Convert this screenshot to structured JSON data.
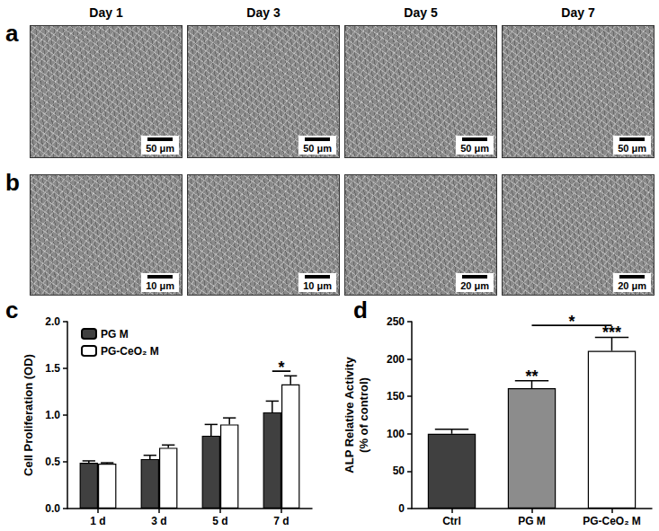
{
  "images": {
    "columns": [
      "Day 1",
      "Day 3",
      "Day 5",
      "Day 7"
    ],
    "rows": [
      {
        "label": "a",
        "scale_bars": [
          "50 μm",
          "50 μm",
          "50 μm",
          "50 μm"
        ]
      },
      {
        "label": "b",
        "scale_bars": [
          "10 μm",
          "10 μm",
          "20 μm",
          "20 μm"
        ]
      }
    ]
  },
  "chart_data": [
    {
      "label": "c",
      "type": "bar",
      "ylabel": [
        "Cell Proliferation (OD)"
      ],
      "categories": [
        "1 d",
        "3 d",
        "5 d",
        "7 d"
      ],
      "series": [
        {
          "name": "PG M",
          "color": "#404040",
          "values": [
            0.49,
            0.53,
            0.78,
            1.03
          ],
          "errors": [
            0.02,
            0.04,
            0.12,
            0.12
          ]
        },
        {
          "name": "PG-CeO₂ M",
          "color": "#ffffff",
          "values": [
            0.48,
            0.65,
            0.9,
            1.33
          ],
          "errors": [
            0.01,
            0.03,
            0.07,
            0.09
          ]
        }
      ],
      "ylim": [
        0,
        2
      ],
      "yticks": [
        {
          "value": 0,
          "label": "0.0"
        },
        0.5,
        {
          "value": 1,
          "label": "1.0"
        },
        1.5,
        {
          "value": 2,
          "label": "2.0"
        }
      ],
      "legend": "upper left",
      "grid": false,
      "annotations": [
        {
          "text": "*",
          "y": 1.47,
          "from": {
            "category": "7 d",
            "series": "PG M"
          },
          "to": {
            "category": "7 d",
            "series": "PG-CeO₂ M"
          }
        }
      ]
    },
    {
      "label": "d",
      "type": "bar",
      "ylabel": [
        "ALP Relative Activity",
        "(% of control)"
      ],
      "categories": [
        "Ctrl",
        "PG M",
        "PG-CeO₂ M"
      ],
      "values": [
        100,
        161,
        211
      ],
      "errors": [
        6,
        10,
        18
      ],
      "colors": [
        "#404040",
        "#8c8c8c",
        "#ffffff"
      ],
      "significance": [
        null,
        "**",
        "***"
      ],
      "ylim": [
        0,
        250
      ],
      "yticks": [
        0,
        50,
        100,
        150,
        200,
        250
      ],
      "grid": false,
      "annotations": [
        {
          "text": "*",
          "y": 245,
          "from": {
            "category": "PG M"
          },
          "to": {
            "category": "PG-CeO₂ M"
          }
        }
      ]
    }
  ]
}
